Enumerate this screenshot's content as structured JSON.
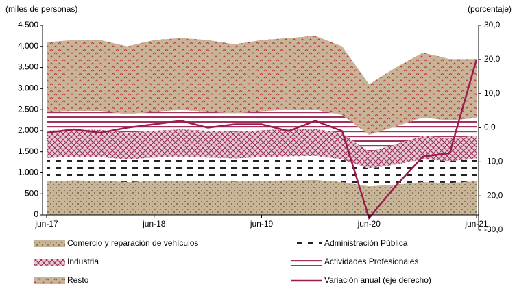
{
  "chart_data": {
    "type": "stacked_area_line",
    "y_axis_label": "(miles de personas)",
    "y2_axis_label": "(porcentaje)",
    "categories": [
      "jun-17",
      null,
      null,
      null,
      "jun-18",
      null,
      null,
      null,
      "jun-19",
      null,
      null,
      null,
      "jun-20",
      null,
      null,
      null,
      "jun-21"
    ],
    "ylim": [
      0,
      4500
    ],
    "yticks": [
      0,
      500,
      {
        "value": 1000,
        "label": "1.000"
      },
      {
        "value": 1500,
        "label": "1.500"
      },
      {
        "value": 2000,
        "label": "2.000"
      },
      {
        "value": 2500,
        "label": "2.500"
      },
      {
        "value": 3000,
        "label": "3.000"
      },
      {
        "value": 3500,
        "label": "3.500"
      },
      {
        "value": 4000,
        "label": "4.000"
      },
      {
        "value": 4500,
        "label": "4.500"
      }
    ],
    "y2lim": [
      -30,
      30
    ],
    "y2ticks": [
      {
        "value": 30,
        "label": "30,0"
      },
      {
        "value": 20,
        "label": "20,0"
      },
      {
        "value": 10,
        "label": "10,0"
      },
      {
        "value": 0,
        "label": "0,0"
      },
      {
        "value": -10,
        "label": "-10,0"
      },
      {
        "value": -20,
        "label": "-20,0"
      },
      {
        "value": -30,
        "label": "-30,0"
      }
    ],
    "series": [
      {
        "name": "Comercio y reparación de vehículos",
        "color": "#c8b597",
        "pattern": "dots",
        "values": [
          800,
          820,
          810,
          780,
          800,
          810,
          800,
          790,
          810,
          820,
          830,
          780,
          680,
          720,
          780,
          760,
          800
        ]
      },
      {
        "name": "Administración Pública",
        "color": "#ffffff",
        "pattern": "dashes",
        "values": [
          550,
          560,
          560,
          540,
          560,
          570,
          560,
          550,
          560,
          570,
          570,
          540,
          420,
          480,
          540,
          520,
          530
        ]
      },
      {
        "name": "Industria",
        "color": "#c9a0b0",
        "pattern": "crosshatch",
        "values": [
          650,
          640,
          650,
          630,
          640,
          650,
          640,
          630,
          640,
          650,
          640,
          620,
          400,
          480,
          560,
          540,
          550
        ]
      },
      {
        "name": "Actividades Profesionales",
        "color": "#ffffff",
        "pattern": "hlines",
        "values": [
          450,
          450,
          450,
          440,
          450,
          460,
          450,
          440,
          450,
          460,
          460,
          430,
          400,
          420,
          430,
          420,
          420
        ]
      },
      {
        "name": "Resto",
        "color": "#c8b597",
        "pattern": "chevrons",
        "values": [
          1650,
          1680,
          1680,
          1610,
          1700,
          1710,
          1700,
          1640,
          1690,
          1700,
          1750,
          1630,
          1200,
          1400,
          1540,
          1460,
          1400
        ]
      },
      {
        "name": "Variación anual (eje derecho)",
        "color": "#9b1b4f",
        "type": "line",
        "axis": "y2",
        "values": [
          -1.5,
          -0.5,
          -1.5,
          0,
          1,
          2,
          0,
          1,
          1,
          -1,
          2,
          -1,
          -26.5,
          -17,
          -8.5,
          -7.5,
          20
        ]
      }
    ]
  }
}
